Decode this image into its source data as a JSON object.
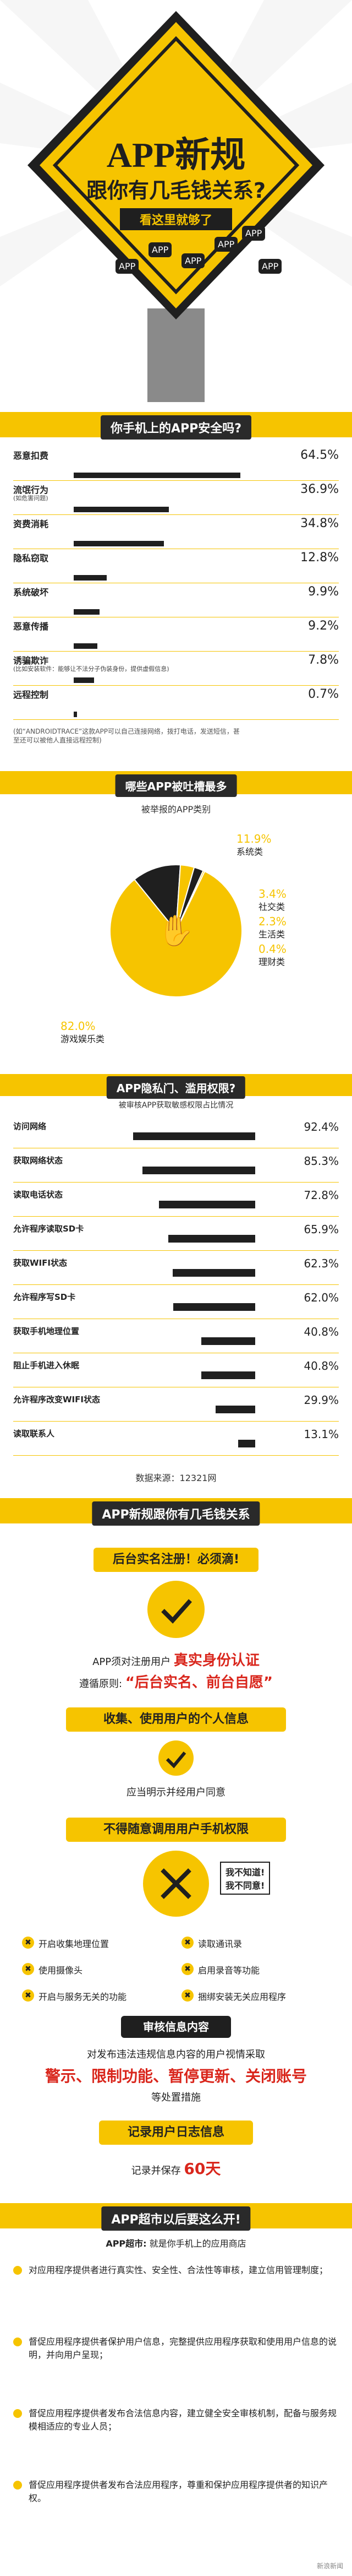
{
  "hero": {
    "title": "APP新规",
    "subtitle": "跟你有几毛钱关系?",
    "tagline": "看这里就够了",
    "badges": [
      "APP",
      "APP",
      "APP",
      "APP",
      "APP",
      "APP"
    ]
  },
  "safety": {
    "header": "你手机上的APP安全吗?",
    "items": [
      {
        "label": "恶意扣费",
        "value": "64.5%"
      },
      {
        "label": "流氓行为",
        "note": "(如危害问题)",
        "value": "36.9%"
      },
      {
        "label": "资费消耗",
        "value": "34.8%"
      },
      {
        "label": "隐私窃取",
        "value": "12.8%"
      },
      {
        "label": "系统破坏",
        "value": "9.9%"
      },
      {
        "label": "恶意传播",
        "value": "9.2%"
      },
      {
        "label": "诱骗欺诈",
        "note": "(比如安装软件：能够让不法分子伪装身份，提供虚假信息)",
        "value": "7.8%"
      },
      {
        "label": "远程控制",
        "value": "0.7%"
      }
    ],
    "footnote": "(如“ANDROIDTRACE”这款APP可以自己连接网络，拨打电话，发送短信，甚至还可以被他人直接远程控制)"
  },
  "complaints": {
    "header": "哪些APP被吐槽最多",
    "sub": "被举报的APP类别",
    "slices": [
      {
        "name": "游戏娱乐类",
        "value": "82.0%"
      },
      {
        "name": "系统类",
        "value": "11.9%"
      },
      {
        "name": "社交类",
        "value": "3.4%"
      },
      {
        "name": "生活类",
        "value": "2.3%"
      },
      {
        "name": "理财类",
        "value": "0.4%"
      }
    ]
  },
  "permissions": {
    "header": "APP隐私门、滥用权限?",
    "sub": "被审核APP获取敏感权限占比情况",
    "items": [
      {
        "label": "访问网络",
        "value": "92.4%"
      },
      {
        "label": "获取网络状态",
        "value": "85.3%"
      },
      {
        "label": "读取电话状态",
        "value": "72.8%"
      },
      {
        "label": "允许程序读取SD卡",
        "value": "65.9%"
      },
      {
        "label": "获取WIFI状态",
        "value": "62.3%"
      },
      {
        "label": "允许程序写SD卡",
        "value": "62.0%"
      },
      {
        "label": "获取手机地理位置",
        "value": "40.8%"
      },
      {
        "label": "阻止手机进入休眠",
        "value": "40.8%"
      },
      {
        "label": "允许程序改变WIFI状态",
        "value": "29.9%"
      },
      {
        "label": "读取联系人",
        "value": "13.1%"
      }
    ],
    "source": "数据来源：12321网"
  },
  "rules": {
    "header": "APP新规跟你有几毛钱关系",
    "rule1": {
      "title": "后台实名注册！必须滴!",
      "line1a": "APP须对注册用户",
      "line1b": "真实身份认证",
      "line2a": "遵循原则:",
      "line2b": "“后台实名、前台自愿”"
    },
    "rule2": {
      "title": "收集、使用用户的个人信息",
      "text": "应当明示并经用户同意"
    },
    "rule3": {
      "title": "不得随意调用用户手机权限",
      "bubble1": "我不知道!",
      "bubble2": "我不同意!",
      "opts": [
        "开启收集地理位置",
        "读取通讯录",
        "使用摄像头",
        "启用录音等功能",
        "开启与服务无关的功能",
        "捆绑安装无关应用程序"
      ]
    },
    "rule4": {
      "title": "审核信息内容",
      "line1": "对发布违法违规信息内容的用户视情采取",
      "line2": "警示、限制功能、暂停更新、关闭账号",
      "line3": "等处置措施"
    },
    "rule5": {
      "title": "记录用户日志信息",
      "text_a": "记录并保存",
      "text_b": "60天"
    }
  },
  "supervision": {
    "header": "APP超市以后要这么开!",
    "sub_a": "APP超市:",
    "sub_b": "就是你手机上的应用商店",
    "items": [
      "对应用程序提供者进行真实性、安全性、合法性等审核，建立信用管理制度；",
      "督促应用程序提供者保护用户信息，完整提供应用程序获取和使用用户信息的说明，并向用户呈现；",
      "督促应用程序提供者发布合法信息内容，建立健全安全审核机制，配备与服务规模相适应的专业人员；",
      "督促应用程序提供者发布合法应用程序，尊重和保护应用程序提供者的知识产权。"
    ],
    "watermark": "新浪新闻"
  },
  "colors": {
    "accent": "#f6c400",
    "dark": "#2a2a2a",
    "red": "#d9261c"
  }
}
